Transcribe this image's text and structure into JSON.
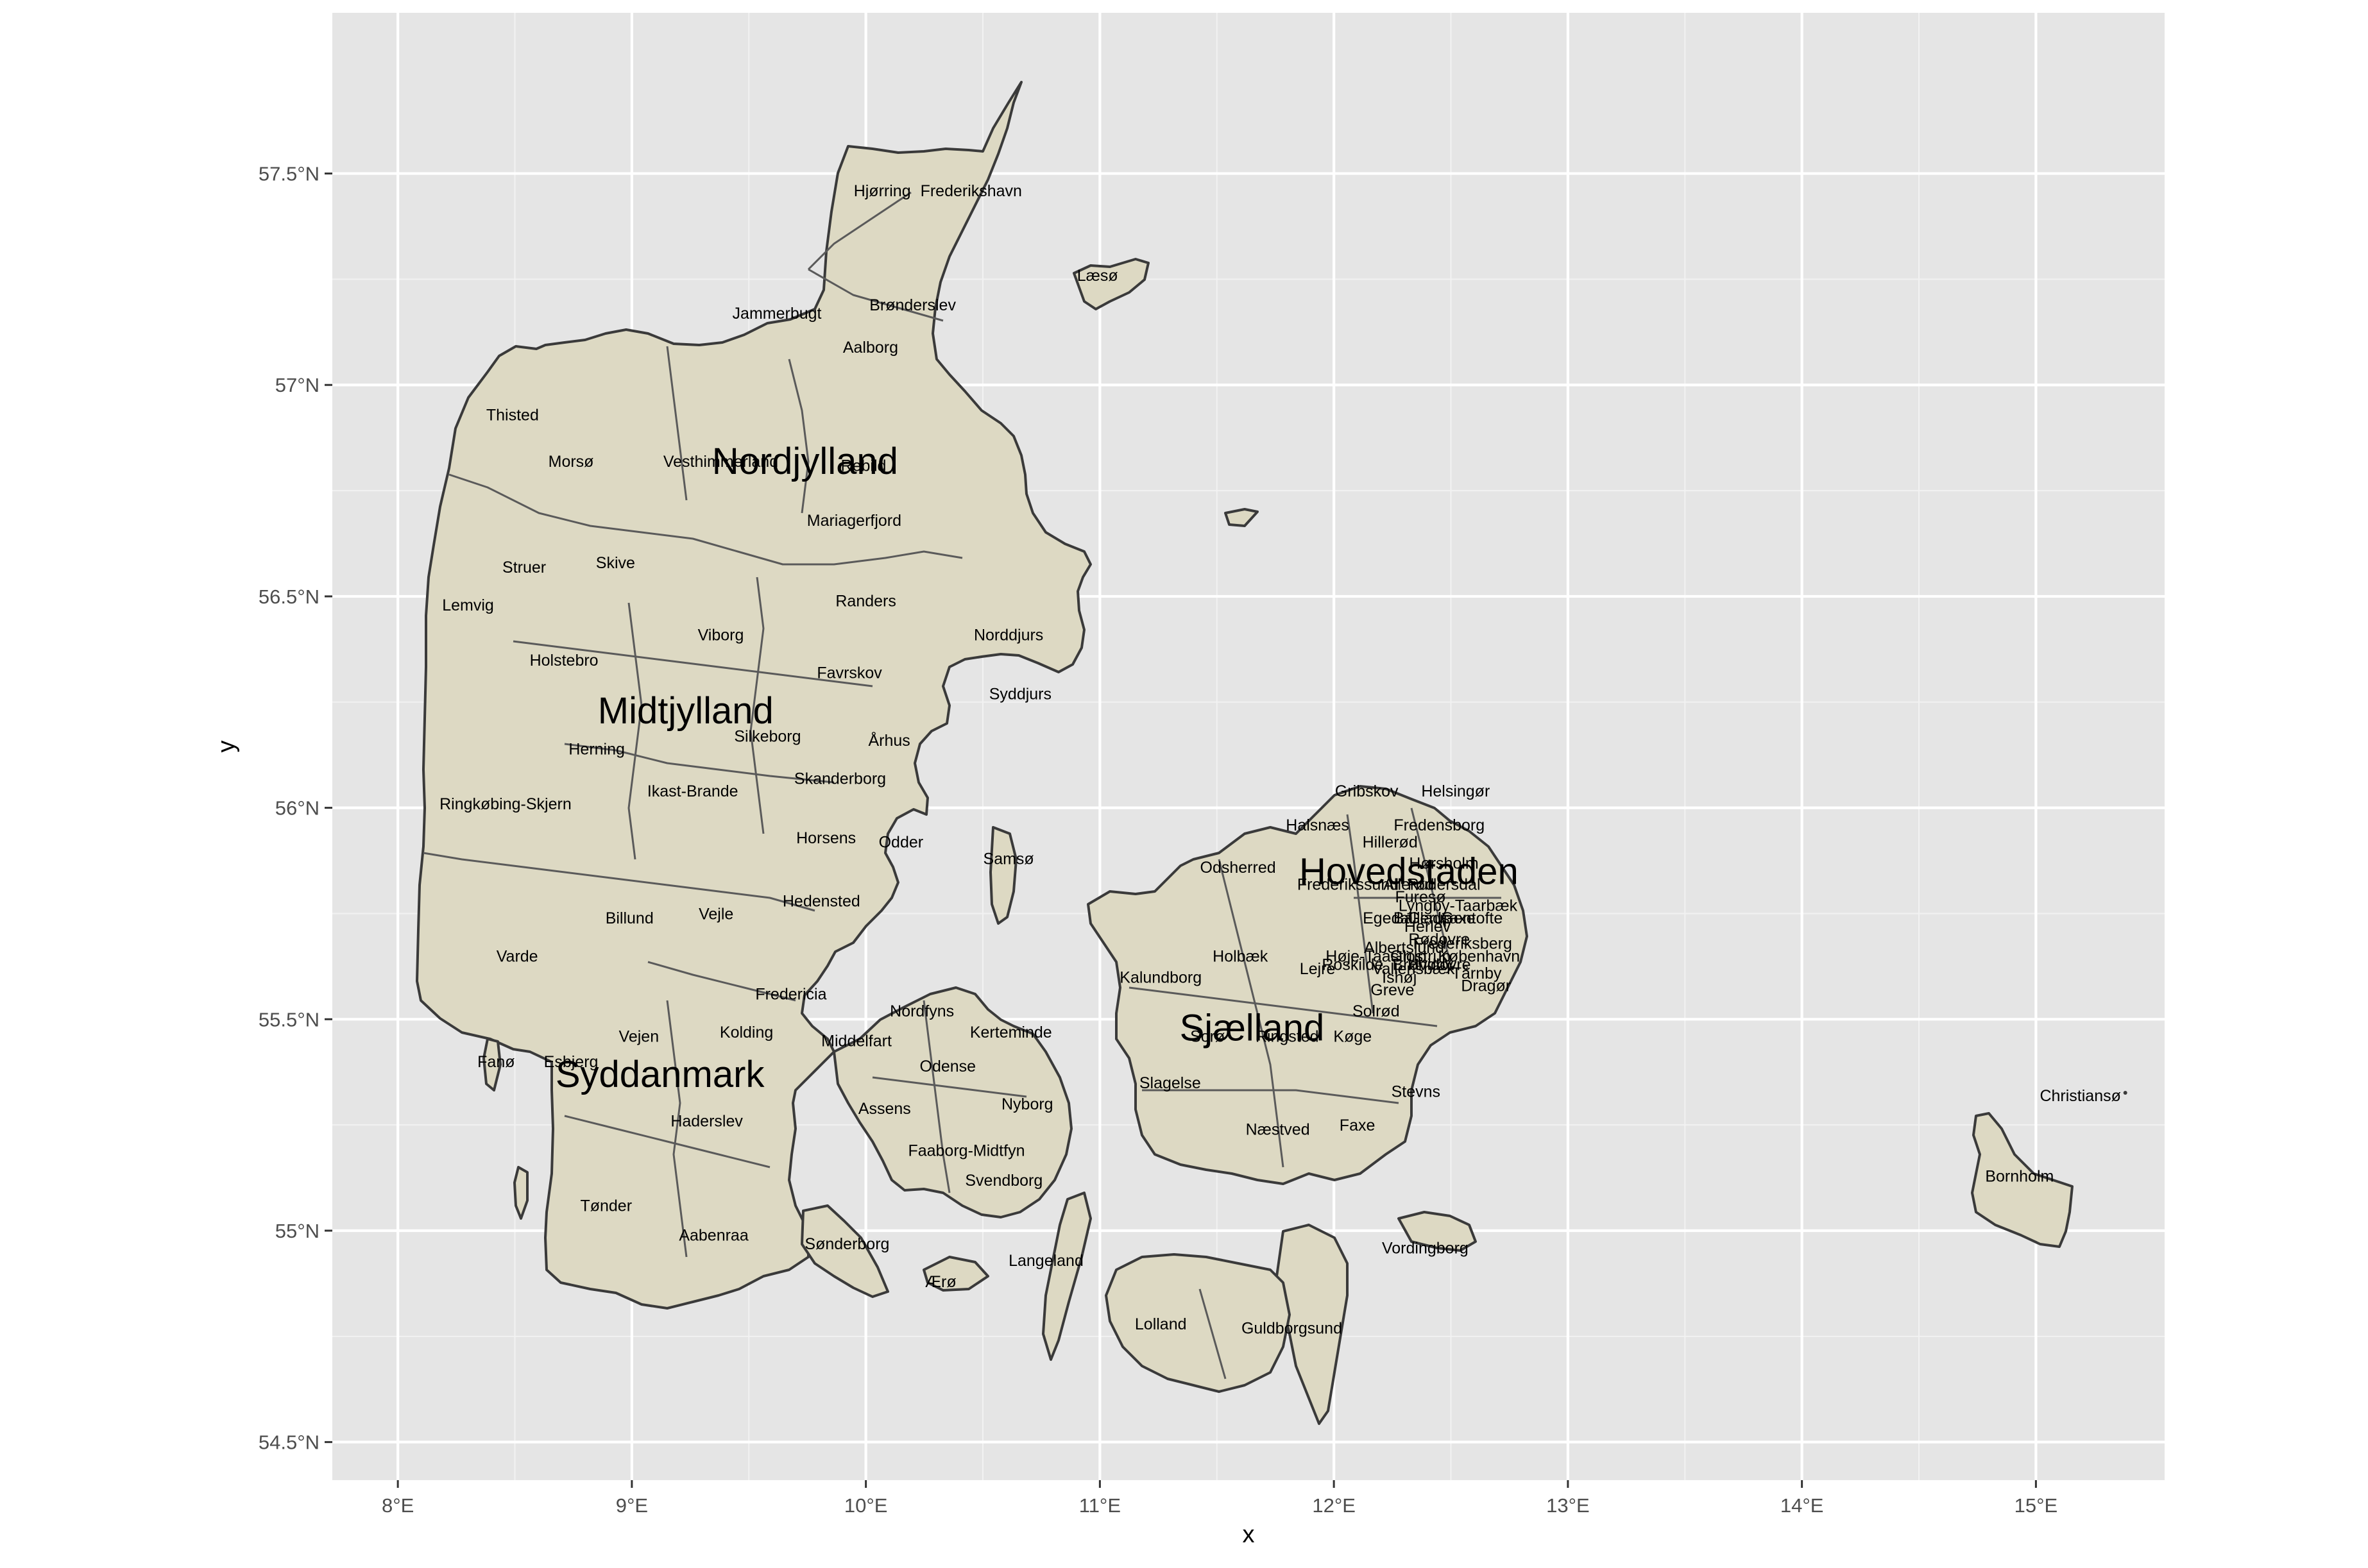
{
  "chart_data": {
    "type": "map",
    "xlabel": "x",
    "ylabel": "y",
    "xlim": [
      7.72,
      15.55
    ],
    "ylim": [
      54.41,
      57.88
    ],
    "x_ticks": [
      {
        "value": 8,
        "label": "8°E"
      },
      {
        "value": 9,
        "label": "9°E"
      },
      {
        "value": 10,
        "label": "10°E"
      },
      {
        "value": 11,
        "label": "11°E"
      },
      {
        "value": 12,
        "label": "12°E"
      },
      {
        "value": 13,
        "label": "13°E"
      },
      {
        "value": 14,
        "label": "14°E"
      },
      {
        "value": 15,
        "label": "15°E"
      }
    ],
    "y_ticks": [
      {
        "value": 54.5,
        "label": "54.5°N"
      },
      {
        "value": 55.0,
        "label": "55°N"
      },
      {
        "value": 55.5,
        "label": "55.5°N"
      },
      {
        "value": 56.0,
        "label": "56°N"
      },
      {
        "value": 56.5,
        "label": "56.5°N"
      },
      {
        "value": 57.0,
        "label": "57°N"
      },
      {
        "value": 57.5,
        "label": "57.5°N"
      }
    ],
    "colors": {
      "land": "#ddd9c3",
      "outline": "#3a3a3a",
      "panel": "#e5e5e5",
      "grid": "#ffffff"
    },
    "regions": [
      {
        "name": "Nordjylland",
        "lon": 9.74,
        "lat": 56.82
      },
      {
        "name": "Midtjylland",
        "lon": 9.23,
        "lat": 56.23
      },
      {
        "name": "Syddanmark",
        "lon": 9.12,
        "lat": 55.37
      },
      {
        "name": "Sjælland",
        "lon": 11.65,
        "lat": 55.48
      },
      {
        "name": "Hovedstaden",
        "lon": 12.32,
        "lat": 55.85
      }
    ],
    "municipalities": [
      {
        "name": "Hjørring",
        "lon": 10.07,
        "lat": 57.46
      },
      {
        "name": "Frederikshavn",
        "lon": 10.45,
        "lat": 57.46
      },
      {
        "name": "Læsø",
        "lon": 10.99,
        "lat": 57.26
      },
      {
        "name": "Jammerbugt",
        "lon": 9.62,
        "lat": 57.17
      },
      {
        "name": "Brønderslev",
        "lon": 10.2,
        "lat": 57.19
      },
      {
        "name": "Aalborg",
        "lon": 10.02,
        "lat": 57.09
      },
      {
        "name": "Thisted",
        "lon": 8.49,
        "lat": 56.93
      },
      {
        "name": "Morsø",
        "lon": 8.74,
        "lat": 56.82
      },
      {
        "name": "Vesthimmerland",
        "lon": 9.38,
        "lat": 56.82
      },
      {
        "name": "Rebild",
        "lon": 9.99,
        "lat": 56.81
      },
      {
        "name": "Mariagerfjord",
        "lon": 9.95,
        "lat": 56.68
      },
      {
        "name": "Skive",
        "lon": 8.93,
        "lat": 56.58
      },
      {
        "name": "Struer",
        "lon": 8.54,
        "lat": 56.57
      },
      {
        "name": "Randers",
        "lon": 10.0,
        "lat": 56.49
      },
      {
        "name": "Lemvig",
        "lon": 8.3,
        "lat": 56.48
      },
      {
        "name": "Viborg",
        "lon": 9.38,
        "lat": 56.41
      },
      {
        "name": "Norddjurs",
        "lon": 10.61,
        "lat": 56.41
      },
      {
        "name": "Holstebro",
        "lon": 8.71,
        "lat": 56.35
      },
      {
        "name": "Favrskov",
        "lon": 9.93,
        "lat": 56.32
      },
      {
        "name": "Syddjurs",
        "lon": 10.66,
        "lat": 56.27
      },
      {
        "name": "Silkeborg",
        "lon": 9.58,
        "lat": 56.17
      },
      {
        "name": "Århus",
        "lon": 10.1,
        "lat": 56.16
      },
      {
        "name": "Herning",
        "lon": 8.85,
        "lat": 56.14
      },
      {
        "name": "Ikast-Brande",
        "lon": 9.26,
        "lat": 56.04
      },
      {
        "name": "Skanderborg",
        "lon": 9.89,
        "lat": 56.07
      },
      {
        "name": "Ringkøbing-Skjern",
        "lon": 8.46,
        "lat": 56.01
      },
      {
        "name": "Horsens",
        "lon": 9.83,
        "lat": 55.93
      },
      {
        "name": "Odder",
        "lon": 10.15,
        "lat": 55.92
      },
      {
        "name": "Samsø",
        "lon": 10.61,
        "lat": 55.88
      },
      {
        "name": "Hedensted",
        "lon": 9.81,
        "lat": 55.78
      },
      {
        "name": "Billund",
        "lon": 8.99,
        "lat": 55.74
      },
      {
        "name": "Vejle",
        "lon": 9.36,
        "lat": 55.75
      },
      {
        "name": "Varde",
        "lon": 8.51,
        "lat": 55.65
      },
      {
        "name": "Fredericia",
        "lon": 9.68,
        "lat": 55.56
      },
      {
        "name": "Nordfyns",
        "lon": 10.24,
        "lat": 55.52
      },
      {
        "name": "Kerteminde",
        "lon": 10.62,
        "lat": 55.47
      },
      {
        "name": "Vejen",
        "lon": 9.03,
        "lat": 55.46
      },
      {
        "name": "Kolding",
        "lon": 9.49,
        "lat": 55.47
      },
      {
        "name": "Middelfart",
        "lon": 9.96,
        "lat": 55.45
      },
      {
        "name": "Fanø",
        "lon": 8.42,
        "lat": 55.4
      },
      {
        "name": "Esbjerg",
        "lon": 8.74,
        "lat": 55.4
      },
      {
        "name": "Odense",
        "lon": 10.35,
        "lat": 55.39
      },
      {
        "name": "Assens",
        "lon": 10.08,
        "lat": 55.29
      },
      {
        "name": "Nyborg",
        "lon": 10.69,
        "lat": 55.3
      },
      {
        "name": "Haderslev",
        "lon": 9.32,
        "lat": 55.26
      },
      {
        "name": "Faaborg-Midtfyn",
        "lon": 10.43,
        "lat": 55.19
      },
      {
        "name": "Svendborg",
        "lon": 10.59,
        "lat": 55.12
      },
      {
        "name": "Tønder",
        "lon": 8.89,
        "lat": 55.06
      },
      {
        "name": "Aabenraa",
        "lon": 9.35,
        "lat": 54.99
      },
      {
        "name": "Sønderborg",
        "lon": 9.92,
        "lat": 54.97
      },
      {
        "name": "Langeland",
        "lon": 10.77,
        "lat": 54.93
      },
      {
        "name": "Ærø",
        "lon": 10.32,
        "lat": 54.88
      },
      {
        "name": "Gribskov",
        "lon": 12.14,
        "lat": 56.04
      },
      {
        "name": "Helsingør",
        "lon": 12.52,
        "lat": 56.04
      },
      {
        "name": "Halsnæs",
        "lon": 11.93,
        "lat": 55.96
      },
      {
        "name": "Fredensborg",
        "lon": 12.45,
        "lat": 55.96
      },
      {
        "name": "Hillerød",
        "lon": 12.24,
        "lat": 55.92
      },
      {
        "name": "Odsherred",
        "lon": 11.59,
        "lat": 55.86
      },
      {
        "name": "Hørsholm",
        "lon": 12.47,
        "lat": 55.87
      },
      {
        "name": "Frederikssund",
        "lon": 12.06,
        "lat": 55.82
      },
      {
        "name": "Allerød",
        "lon": 12.32,
        "lat": 55.82
      },
      {
        "name": "Rudersdal",
        "lon": 12.47,
        "lat": 55.82
      },
      {
        "name": "Furesø",
        "lon": 12.37,
        "lat": 55.79
      },
      {
        "name": "Lyngby-Taarbæk",
        "lon": 12.53,
        "lat": 55.77
      },
      {
        "name": "Egedal",
        "lon": 12.23,
        "lat": 55.74
      },
      {
        "name": "Ballerup",
        "lon": 12.38,
        "lat": 55.74
      },
      {
        "name": "Gladsaxe",
        "lon": 12.46,
        "lat": 55.74
      },
      {
        "name": "Gentofte",
        "lon": 12.59,
        "lat": 55.74
      },
      {
        "name": "Herlev",
        "lon": 12.4,
        "lat": 55.72
      },
      {
        "name": "Rødovre",
        "lon": 12.45,
        "lat": 55.69
      },
      {
        "name": "Albertslund",
        "lon": 12.3,
        "lat": 55.67
      },
      {
        "name": "Frederiksberg",
        "lon": 12.55,
        "lat": 55.68
      },
      {
        "name": "Høje-Taastrup",
        "lon": 12.18,
        "lat": 55.65
      },
      {
        "name": "Glostrup",
        "lon": 12.37,
        "lat": 55.65
      },
      {
        "name": "Brøndby",
        "lon": 12.38,
        "lat": 55.63
      },
      {
        "name": "København",
        "lon": 12.62,
        "lat": 55.65
      },
      {
        "name": "Roskilde",
        "lon": 12.08,
        "lat": 55.63
      },
      {
        "name": "Vallensbæk",
        "lon": 12.34,
        "lat": 55.62
      },
      {
        "name": "Hvidovre",
        "lon": 12.45,
        "lat": 55.63
      },
      {
        "name": "Ishøj",
        "lon": 12.28,
        "lat": 55.6
      },
      {
        "name": "Tårnby",
        "lon": 12.61,
        "lat": 55.61
      },
      {
        "name": "Greve",
        "lon": 12.25,
        "lat": 55.57
      },
      {
        "name": "Dragør",
        "lon": 12.65,
        "lat": 55.58
      },
      {
        "name": "Lejre",
        "lon": 11.93,
        "lat": 55.62
      },
      {
        "name": "Holbæk",
        "lon": 11.6,
        "lat": 55.65
      },
      {
        "name": "Kalundborg",
        "lon": 11.26,
        "lat": 55.6
      },
      {
        "name": "Solrød",
        "lon": 12.18,
        "lat": 55.52
      },
      {
        "name": "Sorø",
        "lon": 11.46,
        "lat": 55.46
      },
      {
        "name": "Ringsted",
        "lon": 11.8,
        "lat": 55.46
      },
      {
        "name": "Køge",
        "lon": 12.08,
        "lat": 55.46
      },
      {
        "name": "Slagelse",
        "lon": 11.3,
        "lat": 55.35
      },
      {
        "name": "Stevns",
        "lon": 12.35,
        "lat": 55.33
      },
      {
        "name": "Næstved",
        "lon": 11.76,
        "lat": 55.24
      },
      {
        "name": "Faxe",
        "lon": 12.1,
        "lat": 55.25
      },
      {
        "name": "Vordingborg",
        "lon": 12.39,
        "lat": 54.96
      },
      {
        "name": "Lolland",
        "lon": 11.26,
        "lat": 54.78
      },
      {
        "name": "Guldborgsund",
        "lon": 11.82,
        "lat": 54.77
      },
      {
        "name": "Christiansø",
        "lon": 15.19,
        "lat": 55.32
      },
      {
        "name": "Bornholm",
        "lon": 14.93,
        "lat": 55.13
      }
    ]
  }
}
